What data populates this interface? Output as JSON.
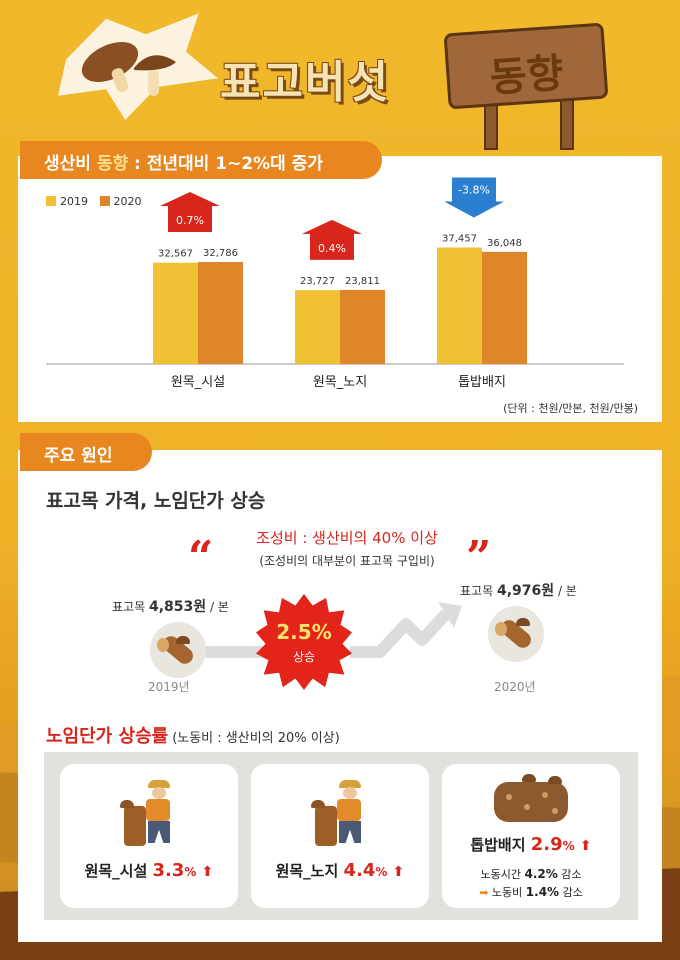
{
  "header": {
    "title": "표고버섯",
    "sign_text": "동향"
  },
  "section1": {
    "tab_prefix": "생산비",
    "tab_highlight": "동향",
    "tab_suffix": ": 전년대비 1~2%대 증가",
    "unit": "(단위 : 천원/만본, 천원/만봉)"
  },
  "chart_data": {
    "type": "bar",
    "categories": [
      "원목_시설",
      "원목_노지",
      "톱밥배지"
    ],
    "series": [
      {
        "name": "2019",
        "values": [
          32567,
          23727,
          37457
        ],
        "labels": [
          "32,567",
          "23,727",
          "37,457"
        ],
        "color": "#f0c233"
      },
      {
        "name": "2020",
        "values": [
          32786,
          23811,
          36048
        ],
        "labels": [
          "32,786",
          "23,811",
          "36,048"
        ],
        "color": "#e0862a"
      }
    ],
    "changes": [
      {
        "label": "0.7%",
        "direction": "up",
        "color": "#d8261c"
      },
      {
        "label": "0.4%",
        "direction": "up",
        "color": "#d8261c"
      },
      {
        "label": "-3.8%",
        "direction": "down",
        "color": "#2a7fd0"
      }
    ],
    "ylim": [
      0,
      45000
    ],
    "legend_position": "top-left",
    "grid": false
  },
  "section2": {
    "tab": "주요 원인",
    "title": "표고목 가격, 노임단가 상승",
    "cost_main": "조성비 : 생산비의 40% 이상",
    "cost_sub": "(조성비의 대부분이 표고목 구입비)",
    "price_left_prefix": "표고목",
    "price_left_value": "4,853원",
    "price_left_suffix": "/ 본",
    "year_left": "2019년",
    "price_right_prefix": "표고목",
    "price_right_value": "4,976원",
    "price_right_suffix": "/ 본",
    "year_right": "2020년",
    "burst_pct": "2.5%",
    "burst_word": "상승",
    "quote_open": "“",
    "quote_close": "”"
  },
  "labor": {
    "title": "노임단가 상승률",
    "subtitle": "(노동비 : 생산비의 20% 이상)",
    "cards": [
      {
        "name": "원목_시설",
        "pct": "3.3",
        "unit": "%",
        "arrow": "⬆"
      },
      {
        "name": "원목_노지",
        "pct": "4.4",
        "unit": "%",
        "arrow": "⬆"
      },
      {
        "name": "톱밥배지",
        "pct": "2.9",
        "unit": "%",
        "arrow": "⬆",
        "note1_label": "노동시간",
        "note1_value": "4.2%",
        "note1_suffix": "감소",
        "note2_arrow": "➡",
        "note2_label": "노동비",
        "note2_value": "1.4%",
        "note2_suffix": "감소"
      }
    ]
  },
  "colors": {
    "background": "#f1b82c",
    "accent_orange": "#e8861f",
    "red": "#d8261c",
    "blue": "#2a7fd0"
  }
}
